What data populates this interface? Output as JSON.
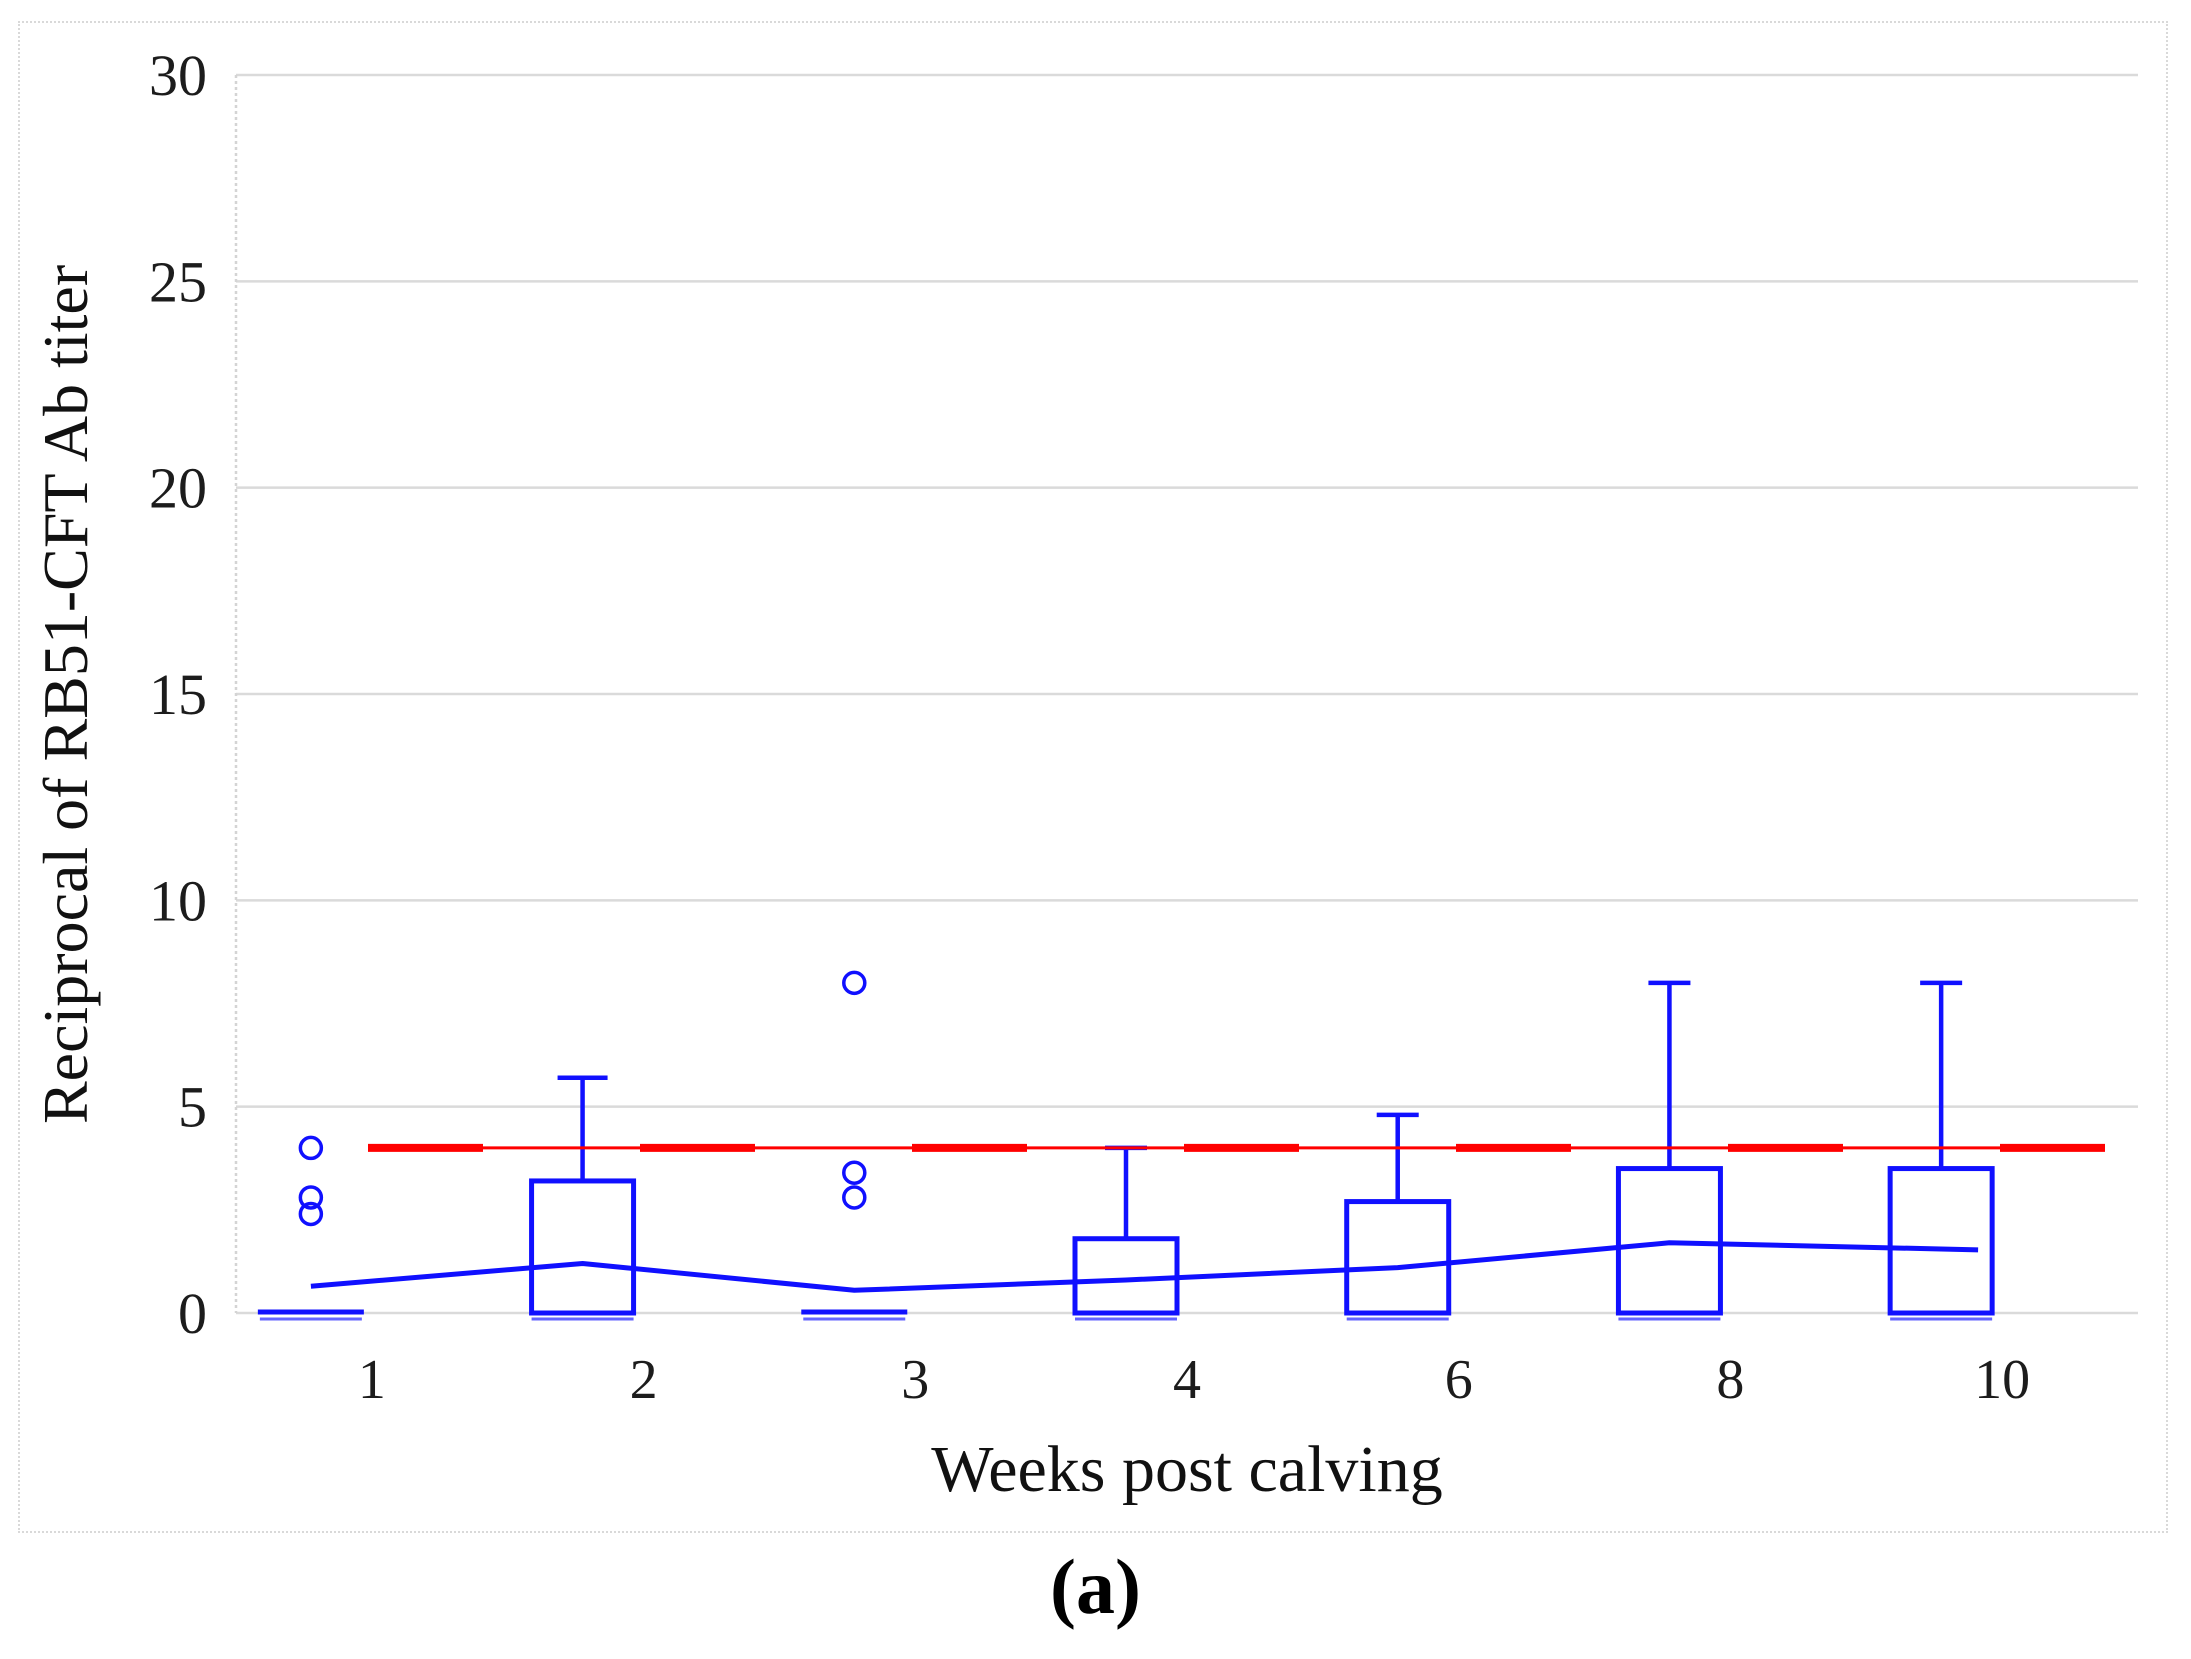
{
  "figure": {
    "caption": "(a)"
  },
  "chart_data": {
    "type": "box",
    "title": "",
    "xlabel": "Weeks post calving",
    "ylabel": "Reciprocal of RB51-CFT Ab titer",
    "categories": [
      "1",
      "2",
      "3",
      "4",
      "6",
      "8",
      "10"
    ],
    "y_ticks": [
      "0",
      "5",
      "10",
      "15",
      "20",
      "25",
      "30"
    ],
    "ylim": [
      0,
      30
    ],
    "grid": "horizontal",
    "legend": "none",
    "reference_line": {
      "value": 4,
      "color": "#ff0000",
      "style": "long-dash"
    },
    "series": [
      {
        "name": "RB51-CFT Ab titer box plot",
        "type": "box",
        "color": "#1010ff",
        "boxes": [
          {
            "category": "1",
            "min": 0,
            "q1": 0,
            "median": 0,
            "q3": 0,
            "whisker_high": 0,
            "outliers": [
              4,
              2.8,
              2.4
            ]
          },
          {
            "category": "2",
            "min": 0,
            "q1": 0,
            "median": 0,
            "q3": 3.2,
            "whisker_high": 5.7,
            "outliers": []
          },
          {
            "category": "3",
            "min": 0,
            "q1": 0,
            "median": 0,
            "q3": 0,
            "whisker_high": 0,
            "outliers": [
              8,
              3.4,
              2.8
            ]
          },
          {
            "category": "4",
            "min": 0,
            "q1": 0,
            "median": 0,
            "q3": 1.8,
            "whisker_high": 4,
            "outliers": []
          },
          {
            "category": "6",
            "min": 0,
            "q1": 0,
            "median": 0,
            "q3": 2.7,
            "whisker_high": 4.8,
            "outliers": []
          },
          {
            "category": "8",
            "min": 0,
            "q1": 0,
            "median": 0,
            "q3": 3.5,
            "whisker_high": 8,
            "outliers": []
          },
          {
            "category": "10",
            "min": 0,
            "q1": 0,
            "median": 0,
            "q3": 3.5,
            "whisker_high": 8,
            "outliers": []
          }
        ]
      },
      {
        "name": "mean line",
        "type": "line",
        "color": "#1010ff",
        "values": [
          0.65,
          1.2,
          0.55,
          0.8,
          1.1,
          1.7,
          1.55
        ]
      }
    ],
    "colors": {
      "box": "#1010ff",
      "mean_line": "#1010ff",
      "reference": "#ff0000",
      "gridline": "#dadada",
      "axis_line": "#d4d4d4",
      "axis_text": "#1c1c1c",
      "frame_border": "#d9d9d9"
    }
  }
}
